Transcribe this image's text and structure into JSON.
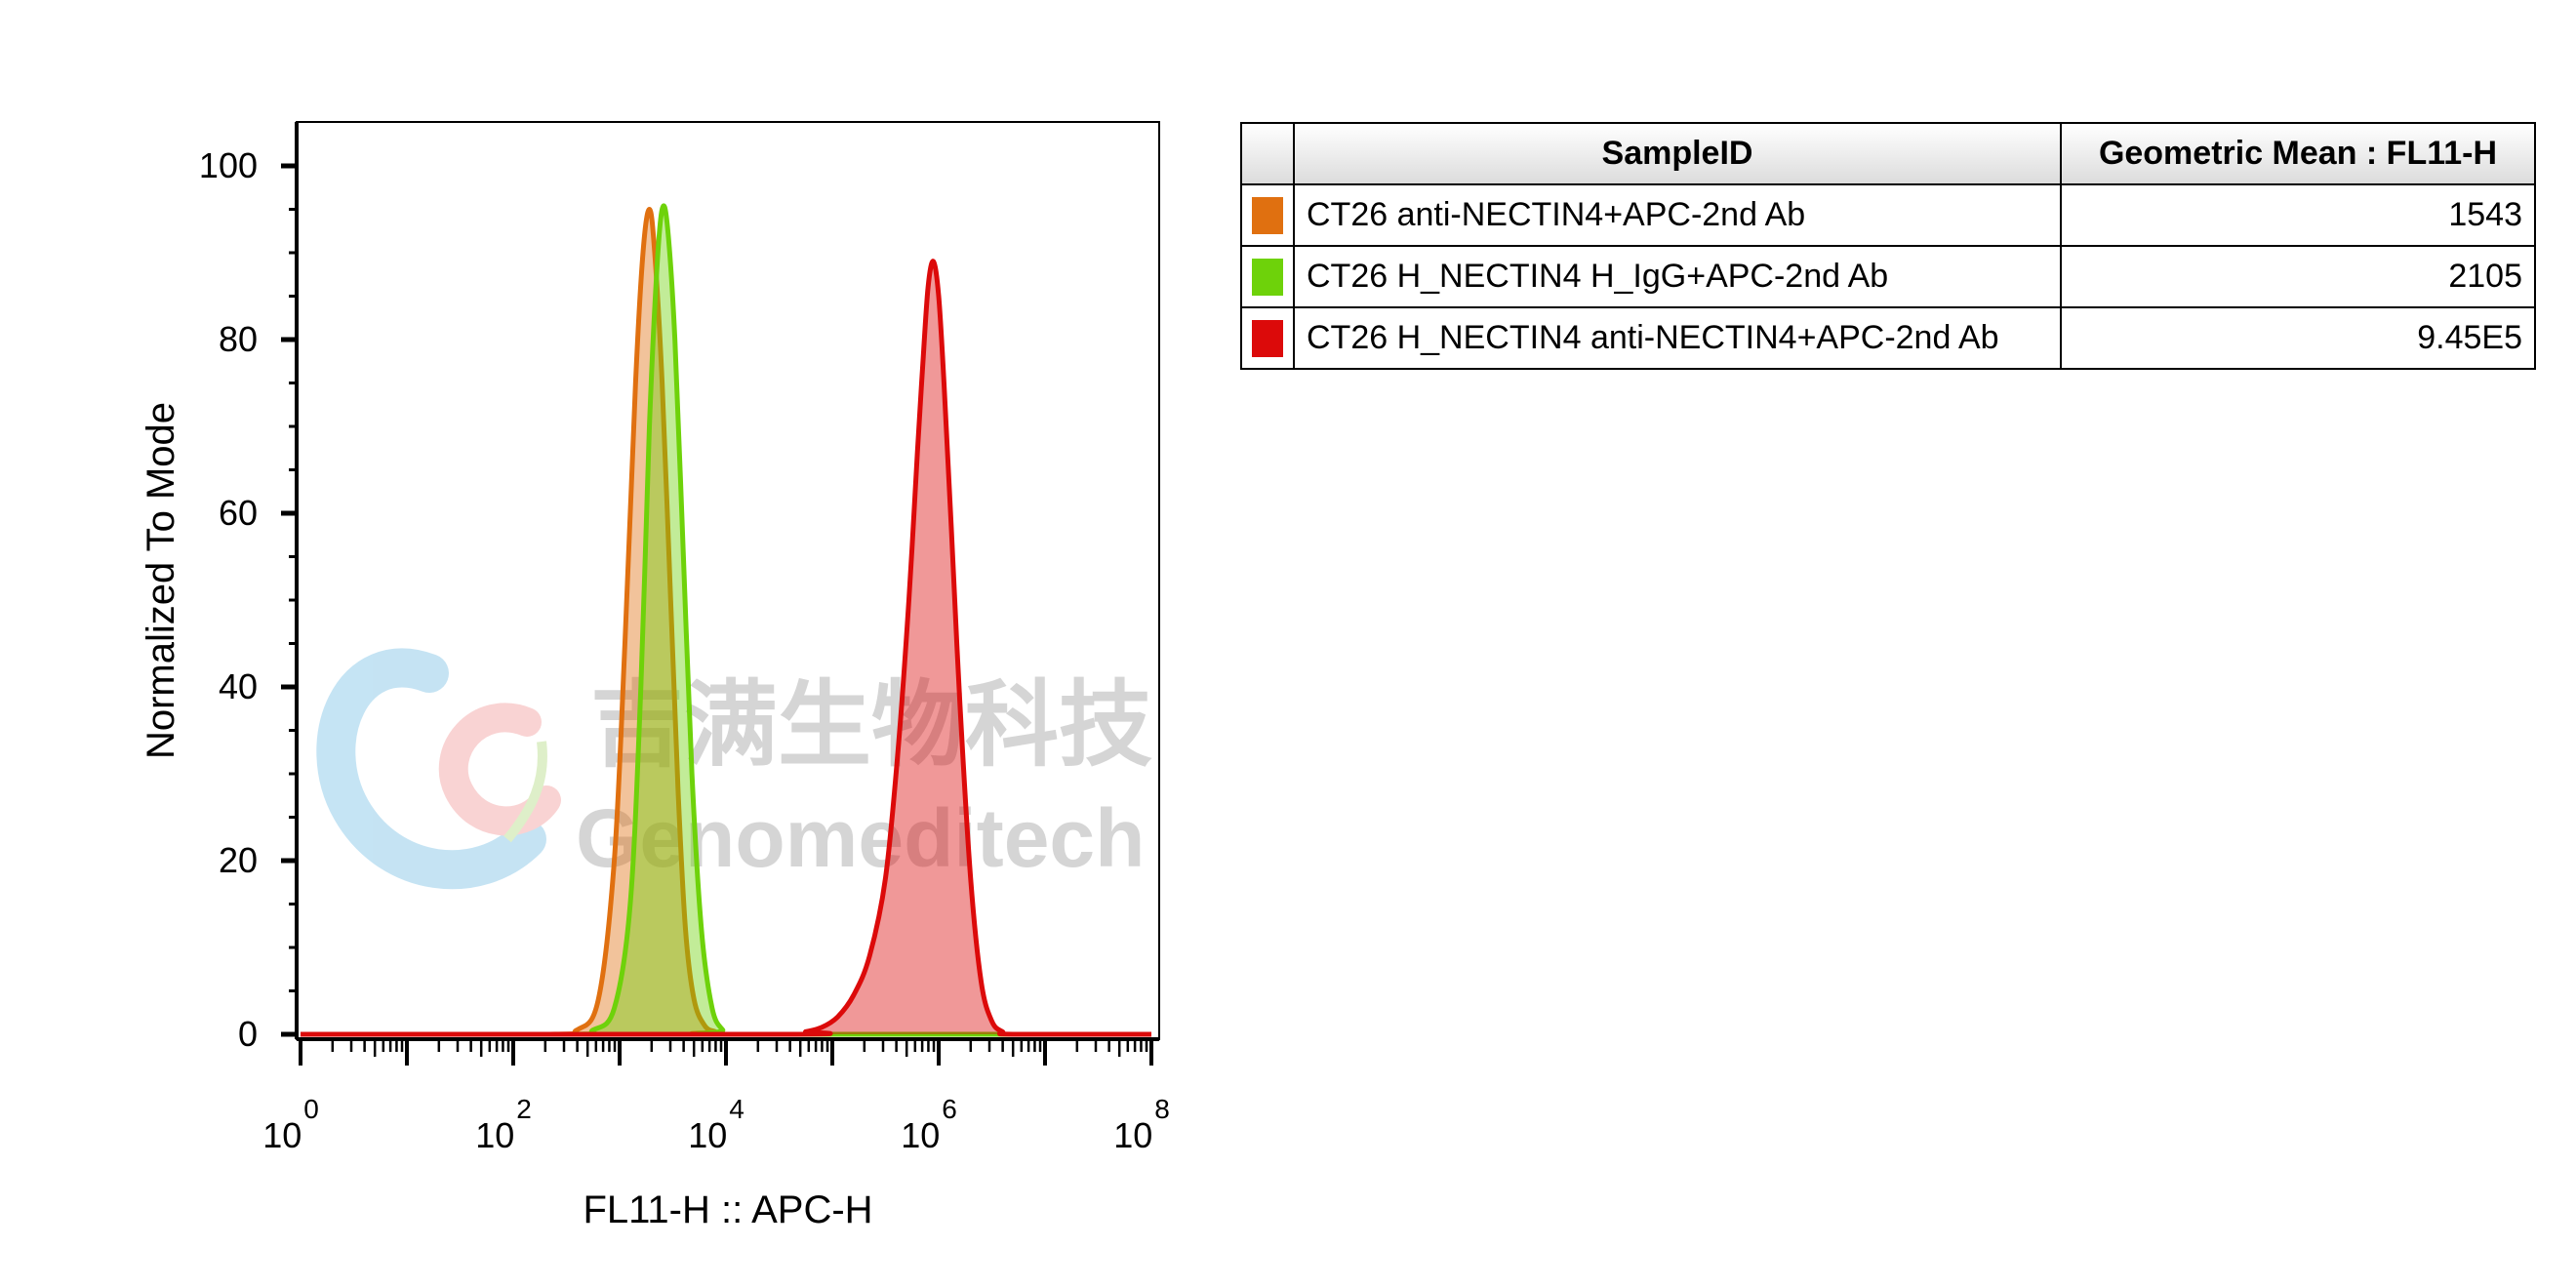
{
  "chart_data": {
    "type": "histogram",
    "xlabel": "FL11-H :: APC-H",
    "ylabel": "Normalized To Mode",
    "x_scale": "log10",
    "xlim": [
      0,
      8
    ],
    "ylim": [
      0,
      100
    ],
    "x_ticks": [
      {
        "base": "10",
        "exp": "0"
      },
      {
        "base": "10",
        "exp": "2"
      },
      {
        "base": "10",
        "exp": "4"
      },
      {
        "base": "10",
        "exp": "6"
      },
      {
        "base": "10",
        "exp": "8"
      }
    ],
    "y_ticks": [
      "0",
      "20",
      "40",
      "60",
      "80",
      "100"
    ],
    "series": [
      {
        "name": "CT26 anti-NECTIN4+APC-2nd Ab",
        "color": "#e07010",
        "points": [
          [
            0,
            0
          ],
          [
            2.3,
            0
          ],
          [
            2.6,
            0.5
          ],
          [
            2.8,
            4
          ],
          [
            2.95,
            20
          ],
          [
            3.05,
            45
          ],
          [
            3.15,
            75
          ],
          [
            3.22,
            90
          ],
          [
            3.28,
            95
          ],
          [
            3.33,
            90
          ],
          [
            3.4,
            75
          ],
          [
            3.48,
            50
          ],
          [
            3.55,
            28
          ],
          [
            3.62,
            12
          ],
          [
            3.7,
            4
          ],
          [
            3.8,
            1
          ],
          [
            3.9,
            0.3
          ],
          [
            4.0,
            0
          ],
          [
            8,
            0
          ]
        ]
      },
      {
        "name": "CT26 H_NECTIN4 H_IgG+APC-2nd Ab",
        "color": "#6ed20a",
        "points": [
          [
            0,
            0
          ],
          [
            2.5,
            0
          ],
          [
            2.75,
            0.5
          ],
          [
            2.95,
            3
          ],
          [
            3.1,
            15
          ],
          [
            3.2,
            40
          ],
          [
            3.28,
            70
          ],
          [
            3.35,
            88
          ],
          [
            3.4,
            95
          ],
          [
            3.45,
            93
          ],
          [
            3.52,
            80
          ],
          [
            3.6,
            55
          ],
          [
            3.68,
            30
          ],
          [
            3.77,
            12
          ],
          [
            3.87,
            3
          ],
          [
            3.97,
            0.5
          ],
          [
            4.05,
            0
          ],
          [
            8,
            0
          ]
        ]
      },
      {
        "name": "CT26 H_NECTIN4 anti-NECTIN4+APC-2nd Ab",
        "color": "#dc0a0a",
        "points": [
          [
            0,
            0
          ],
          [
            4.6,
            0
          ],
          [
            4.75,
            0.3
          ],
          [
            4.9,
            0.8
          ],
          [
            5.05,
            2
          ],
          [
            5.2,
            4.5
          ],
          [
            5.35,
            9
          ],
          [
            5.5,
            18
          ],
          [
            5.62,
            33
          ],
          [
            5.72,
            50
          ],
          [
            5.8,
            67
          ],
          [
            5.85,
            77
          ],
          [
            5.9,
            86
          ],
          [
            5.95,
            89
          ],
          [
            6.0,
            85
          ],
          [
            6.05,
            75
          ],
          [
            6.12,
            58
          ],
          [
            6.2,
            38
          ],
          [
            6.3,
            18
          ],
          [
            6.4,
            6
          ],
          [
            6.5,
            1.5
          ],
          [
            6.6,
            0.3
          ],
          [
            6.7,
            0
          ],
          [
            8,
            0
          ]
        ]
      }
    ],
    "legend_table": {
      "headers": [
        "SampleID",
        "Geometric Mean : FL11-H"
      ],
      "rows": [
        {
          "sample": "CT26 anti-NECTIN4+APC-2nd Ab",
          "value": "1543",
          "color": "#e07010"
        },
        {
          "sample": "CT26 H_NECTIN4 H_IgG+APC-2nd Ab",
          "value": "2105",
          "color": "#6ed20a"
        },
        {
          "sample": "CT26 H_NECTIN4 anti-NECTIN4+APC-2nd Ab",
          "value": "9.45E5",
          "color": "#dc0a0a"
        }
      ]
    }
  },
  "watermark": {
    "chinese": "吉满生物科技",
    "english": "Genomeditech"
  }
}
